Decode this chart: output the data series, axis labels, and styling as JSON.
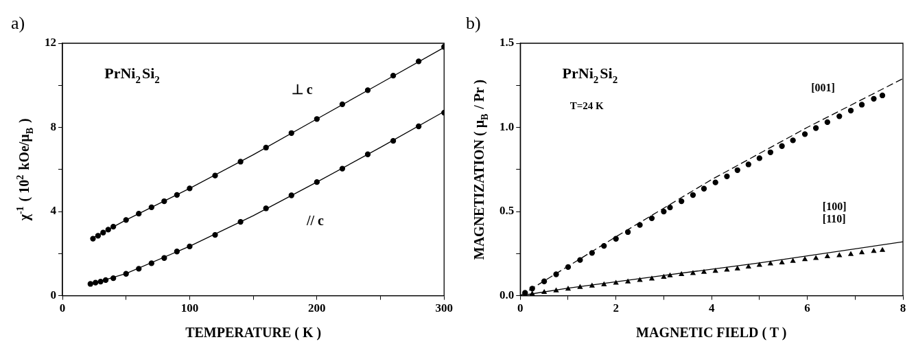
{
  "chart_data": [
    {
      "type": "scatter",
      "title": "a)",
      "xlabel": "TEMPERATURE ( K )",
      "ylabel": "χ$^{-1}$ ( 10$^{2}$ kOe/μ$_{B}$ )",
      "xlim": [
        0,
        300
      ],
      "ylim": [
        0,
        12
      ],
      "xticks": [
        0,
        {
          "value": 50,
          "label": null
        },
        100,
        {
          "value": 150,
          "label": null
        },
        200,
        {
          "value": 250,
          "label": null
        },
        300
      ],
      "yticks": [
        0,
        {
          "value": 2,
          "label": null
        },
        4,
        {
          "value": 6,
          "label": null
        },
        8,
        {
          "value": 10,
          "label": null
        },
        12
      ],
      "annotations": [
        "PrNi$_{2}$Si$_{2}$",
        "⊥ c",
        "// c"
      ],
      "series": [
        {
          "type": "scatter",
          "marker": "circle",
          "color": "#000000",
          "x": [
            24,
            28,
            32,
            36,
            40,
            50,
            60,
            70,
            80,
            90,
            100,
            120,
            140,
            160,
            180,
            200,
            220,
            240,
            260,
            280,
            300
          ],
          "values": [
            2.71,
            2.85,
            3.0,
            3.14,
            3.28,
            3.6,
            3.9,
            4.2,
            4.49,
            4.79,
            5.1,
            5.71,
            6.37,
            7.04,
            7.73,
            8.4,
            9.1,
            9.77,
            10.46,
            11.14,
            11.83
          ]
        },
        {
          "type": "scatter",
          "marker": "circle",
          "color": "#000000",
          "x": [
            22,
            26,
            30,
            34,
            40,
            50,
            60,
            70,
            80,
            90,
            100,
            120,
            140,
            160,
            180,
            200,
            220,
            240,
            260,
            280,
            300
          ],
          "values": [
            0.56,
            0.62,
            0.67,
            0.74,
            0.83,
            1.04,
            1.28,
            1.54,
            1.79,
            2.1,
            2.34,
            2.89,
            3.51,
            4.15,
            4.77,
            5.4,
            6.04,
            6.72,
            7.36,
            8.05,
            8.7
          ]
        },
        {
          "type": "line",
          "marker": "none",
          "line_style": "solid",
          "color": "#000000",
          "x": [
            24,
            50,
            100,
            150,
            200,
            250,
            300
          ],
          "values": [
            2.75,
            3.6,
            5.1,
            6.7,
            8.4,
            10.1,
            11.8
          ]
        },
        {
          "type": "line",
          "marker": "none",
          "line_style": "solid",
          "color": "#000000",
          "x": [
            22,
            50,
            100,
            150,
            200,
            250,
            300
          ],
          "values": [
            0.55,
            1.05,
            2.35,
            3.8,
            5.4,
            7.05,
            8.75
          ]
        }
      ]
    },
    {
      "type": "scatter",
      "title": "b)",
      "xlabel": "MAGNETIC FIELD ( T )",
      "ylabel": "MAGNETIZATION ( μ$_{B}$ / Pr )",
      "xlim": [
        0,
        8
      ],
      "ylim": [
        0,
        1.5
      ],
      "xticks": [
        0,
        {
          "value": 1,
          "label": null
        },
        2,
        {
          "value": 3,
          "label": null
        },
        4,
        {
          "value": 5,
          "label": null
        },
        6,
        {
          "value": 7,
          "label": null
        },
        8
      ],
      "yticks": [
        {
          "value": 0,
          "label": "0.0"
        },
        {
          "value": 0.25,
          "label": null
        },
        0.5,
        {
          "value": 0.75,
          "label": null
        },
        {
          "value": 1,
          "label": "1.0"
        },
        {
          "value": 1.25,
          "label": null
        },
        1.5
      ],
      "annotations": [
        "PrNi$_{2}$Si$_{2}$",
        "T=24 K",
        "[001]",
        "[100]",
        "[110]"
      ],
      "series": [
        {
          "type": "scatter",
          "marker": "circle",
          "color": "#000000",
          "x": [
            0.1,
            0.25,
            0.5,
            0.75,
            1,
            1.25,
            1.5,
            1.75,
            2,
            2.25,
            2.5,
            2.75,
            3.0,
            3.13,
            3.37,
            3.61,
            3.84,
            4.08,
            4.32,
            4.54,
            4.77,
            5.0,
            5.23,
            5.47,
            5.7,
            5.95,
            6.18,
            6.42,
            6.67,
            6.91,
            7.14,
            7.39,
            7.57
          ],
          "values": [
            0.017,
            0.042,
            0.085,
            0.127,
            0.17,
            0.212,
            0.254,
            0.296,
            0.338,
            0.378,
            0.42,
            0.46,
            0.5,
            0.524,
            0.561,
            0.598,
            0.636,
            0.673,
            0.709,
            0.746,
            0.78,
            0.817,
            0.852,
            0.889,
            0.923,
            0.96,
            0.996,
            1.031,
            1.066,
            1.1,
            1.135,
            1.17,
            1.19
          ]
        },
        {
          "type": "scatter",
          "marker": "triangle",
          "color": "#000000",
          "x": [
            0.25,
            0.5,
            0.75,
            1,
            1.25,
            1.5,
            1.75,
            2,
            2.25,
            2.5,
            2.75,
            3.0,
            3.13,
            3.37,
            3.61,
            3.84,
            4.08,
            4.32,
            4.54,
            4.77,
            5.0,
            5.23,
            5.47,
            5.7,
            5.95,
            6.18,
            6.42,
            6.67,
            6.91,
            7.14,
            7.39,
            7.57
          ],
          "values": [
            0.01,
            0.02,
            0.03,
            0.04,
            0.05,
            0.058,
            0.066,
            0.075,
            0.083,
            0.092,
            0.1,
            0.11,
            0.119,
            0.127,
            0.133,
            0.14,
            0.146,
            0.153,
            0.16,
            0.171,
            0.182,
            0.19,
            0.196,
            0.205,
            0.215,
            0.222,
            0.233,
            0.239,
            0.246,
            0.256,
            0.264,
            0.27
          ]
        },
        {
          "type": "line",
          "marker": "none",
          "line_style": "dashed",
          "color": "#000000",
          "x": [
            0,
            2,
            4,
            6,
            8
          ],
          "values": [
            0,
            0.35,
            0.69,
            1.0,
            1.29
          ]
        },
        {
          "type": "line",
          "marker": "none",
          "line_style": "solid",
          "color": "#000000",
          "x": [
            0,
            1,
            3,
            5,
            8
          ],
          "values": [
            0,
            0.045,
            0.12,
            0.195,
            0.32
          ]
        }
      ]
    }
  ]
}
